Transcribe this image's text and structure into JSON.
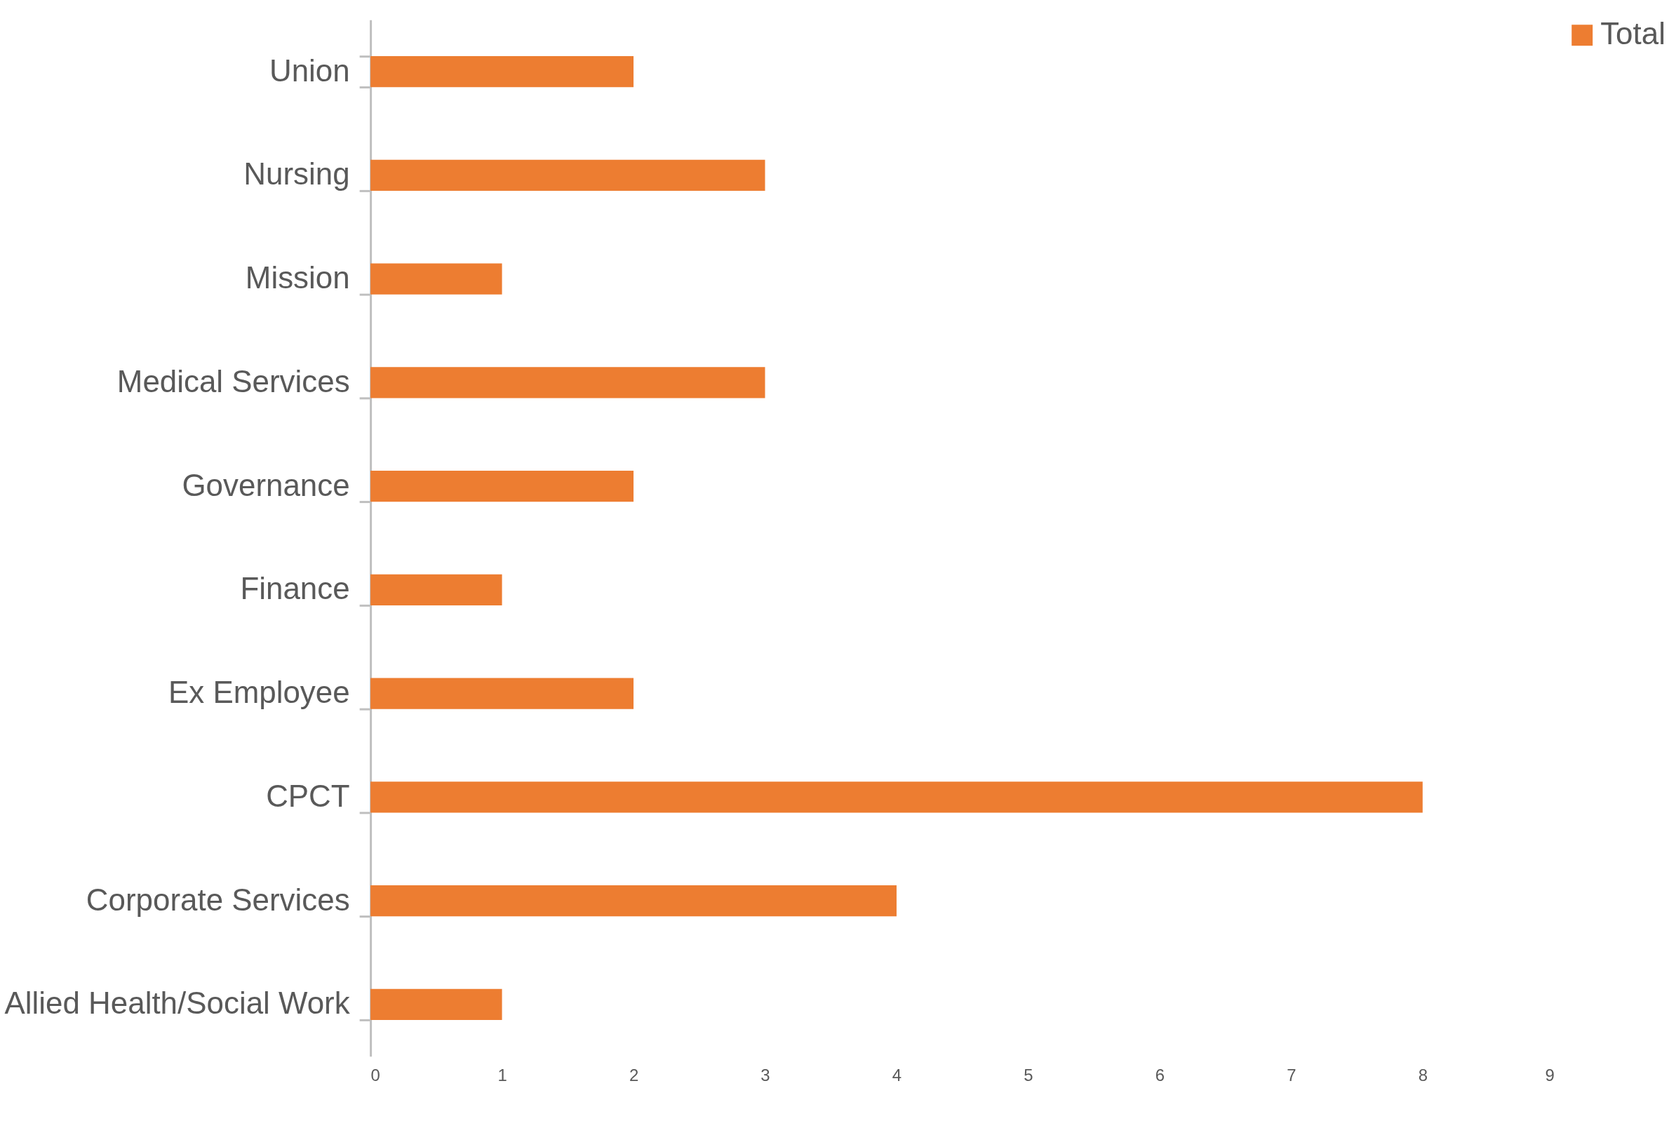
{
  "chart_data": {
    "type": "bar",
    "orientation": "horizontal",
    "categories": [
      "Union",
      "Nursing",
      "Mission",
      "Medical Services",
      "Governance",
      "Finance",
      "Ex Employee",
      "CPCT",
      "Corporate Services",
      "Allied Health/Social Work"
    ],
    "series": [
      {
        "name": "Total",
        "color": "#ed7d31",
        "values": [
          2,
          3,
          1,
          3,
          2,
          1,
          2,
          8,
          4,
          1
        ]
      }
    ],
    "xlim": [
      0,
      9
    ],
    "xticks": [
      0,
      1,
      2,
      3,
      4,
      5,
      6,
      7,
      8,
      9
    ],
    "grid": false,
    "legend": "right"
  }
}
